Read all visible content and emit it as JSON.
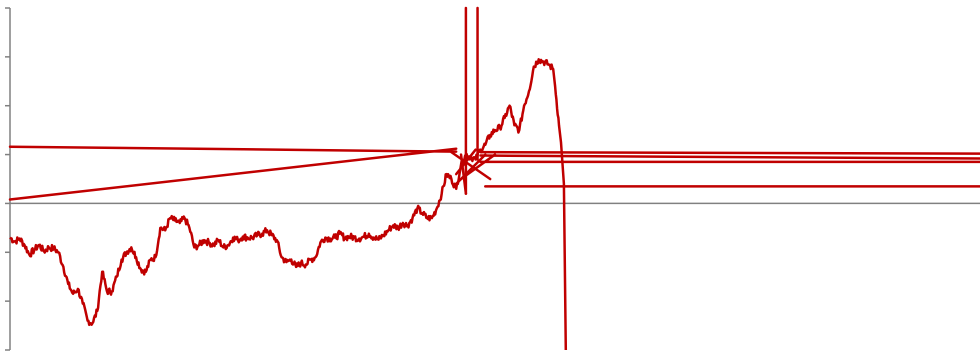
{
  "chart_data": {
    "type": "line",
    "title": "",
    "xlabel": "",
    "ylabel": "",
    "xlim": [
      0,
      1000
    ],
    "ylim": [
      -3,
      4
    ],
    "grid": false,
    "legend": "none",
    "zero_line": true,
    "colors": {
      "series": "#c00000",
      "axis": "#808080",
      "background": "#ffffff"
    },
    "series": [
      {
        "values": [
          [
            0,
            -0.7
          ],
          [
            5,
            -0.78
          ],
          [
            10,
            -0.72
          ],
          [
            15,
            -0.85
          ],
          [
            20,
            -1.05
          ],
          [
            25,
            -0.95
          ],
          [
            30,
            -0.85
          ],
          [
            35,
            -0.98
          ],
          [
            40,
            -0.9
          ],
          [
            45,
            -0.92
          ],
          [
            50,
            -1.0
          ],
          [
            55,
            -1.3
          ],
          [
            60,
            -1.65
          ],
          [
            65,
            -1.85
          ],
          [
            70,
            -1.75
          ],
          [
            75,
            -2.05
          ],
          [
            80,
            -2.4
          ],
          [
            85,
            -2.45
          ],
          [
            90,
            -2.2
          ],
          [
            95,
            -1.4
          ],
          [
            100,
            -1.8
          ],
          [
            105,
            -1.8
          ],
          [
            110,
            -1.5
          ],
          [
            115,
            -1.15
          ],
          [
            120,
            -1.0
          ],
          [
            125,
            -0.9
          ],
          [
            130,
            -1.1
          ],
          [
            135,
            -1.35
          ],
          [
            140,
            -1.4
          ],
          [
            145,
            -1.15
          ],
          [
            150,
            -1.1
          ],
          [
            155,
            -0.5
          ],
          [
            160,
            -0.55
          ],
          [
            165,
            -0.3
          ],
          [
            170,
            -0.35
          ],
          [
            175,
            -0.4
          ],
          [
            180,
            -0.3
          ],
          [
            185,
            -0.5
          ],
          [
            190,
            -0.9
          ],
          [
            195,
            -0.85
          ],
          [
            200,
            -0.75
          ],
          [
            205,
            -0.8
          ],
          [
            210,
            -0.85
          ],
          [
            215,
            -0.75
          ],
          [
            220,
            -0.9
          ],
          [
            225,
            -0.85
          ],
          [
            230,
            -0.7
          ],
          [
            235,
            -0.75
          ],
          [
            240,
            -0.68
          ],
          [
            245,
            -0.7
          ],
          [
            250,
            -0.7
          ],
          [
            255,
            -0.65
          ],
          [
            260,
            -0.62
          ],
          [
            265,
            -0.55
          ],
          [
            270,
            -0.65
          ],
          [
            275,
            -0.75
          ],
          [
            280,
            -1.1
          ],
          [
            285,
            -1.2
          ],
          [
            290,
            -1.15
          ],
          [
            295,
            -1.3
          ],
          [
            300,
            -1.22
          ],
          [
            305,
            -1.25
          ],
          [
            310,
            -1.15
          ],
          [
            315,
            -1.1
          ],
          [
            320,
            -0.8
          ],
          [
            325,
            -0.7
          ],
          [
            330,
            -0.72
          ],
          [
            335,
            -0.7
          ],
          [
            340,
            -0.62
          ],
          [
            345,
            -0.7
          ],
          [
            350,
            -0.68
          ],
          [
            355,
            -0.7
          ],
          [
            360,
            -0.72
          ],
          [
            365,
            -0.68
          ],
          [
            370,
            -0.62
          ],
          [
            375,
            -0.7
          ],
          [
            380,
            -0.74
          ],
          [
            385,
            -0.65
          ],
          [
            390,
            -0.55
          ],
          [
            395,
            -0.45
          ],
          [
            400,
            -0.5
          ],
          [
            405,
            -0.4
          ],
          [
            410,
            -0.45
          ],
          [
            415,
            -0.3
          ],
          [
            420,
            -0.1
          ],
          [
            425,
            -0.2
          ],
          [
            430,
            -0.3
          ],
          [
            435,
            -0.3
          ],
          [
            440,
            -0.1
          ],
          [
            445,
            0.2
          ],
          [
            450,
            0.6
          ],
          [
            455,
            0.5
          ],
          [
            460,
            0.3
          ],
          [
            465,
            0.8
          ],
          [
            470,
            1.0
          ],
          [
            475,
            0.95
          ],
          [
            480,
            0.9
          ],
          [
            485,
            1.1
          ],
          [
            490,
            1.2
          ],
          [
            495,
            1.4
          ],
          [
            500,
            1.5
          ],
          [
            505,
            1.55
          ],
          [
            510,
            1.75
          ],
          [
            515,
            2.0
          ],
          [
            520,
            1.6
          ],
          [
            525,
            1.5
          ],
          [
            530,
            2.0
          ],
          [
            535,
            2.3
          ],
          [
            540,
            2.8
          ],
          [
            545,
            2.95
          ],
          [
            550,
            2.9
          ],
          [
            555,
            2.85
          ],
          [
            560,
            2.75
          ],
          [
            562,
            2.4
          ],
          [
            566,
            1.6
          ],
          [
            568,
            1.25
          ],
          [
            571,
            0.4
          ],
          [
            573,
            -3.0
          ]
        ]
      }
    ],
    "overlay_lines": [
      {
        "x1": 0,
        "y1": 0.08,
        "x2": 460,
        "y2": 1.12
      },
      {
        "x1": 0,
        "y1": 1.16,
        "x2": 460,
        "y2": 1.06
      },
      {
        "x1": 485,
        "y1": 1.05,
        "x2": 1000,
        "y2": 1.02
      },
      {
        "x1": 485,
        "y1": 0.98,
        "x2": 1000,
        "y2": 0.92
      },
      {
        "x1": 485,
        "y1": 0.85,
        "x2": 1000,
        "y2": 0.85
      },
      {
        "x1": 490,
        "y1": 0.35,
        "x2": 1000,
        "y2": 0.35
      },
      {
        "x1": 470,
        "y1": 4.0,
        "x2": 470,
        "y2": 0.2
      },
      {
        "x1": 482,
        "y1": 4.0,
        "x2": 482,
        "y2": 0.9
      },
      {
        "x1": 455,
        "y1": 1.05,
        "x2": 495,
        "y2": 0.5
      },
      {
        "x1": 460,
        "y1": 0.6,
        "x2": 480,
        "y2": 1.1
      },
      {
        "x1": 460,
        "y1": 0.4,
        "x2": 490,
        "y2": 1.0
      },
      {
        "x1": 465,
        "y1": 0.5,
        "x2": 500,
        "y2": 1.0
      },
      {
        "x1": 465,
        "y1": 1.0,
        "x2": 470,
        "y2": 0.2
      }
    ]
  }
}
